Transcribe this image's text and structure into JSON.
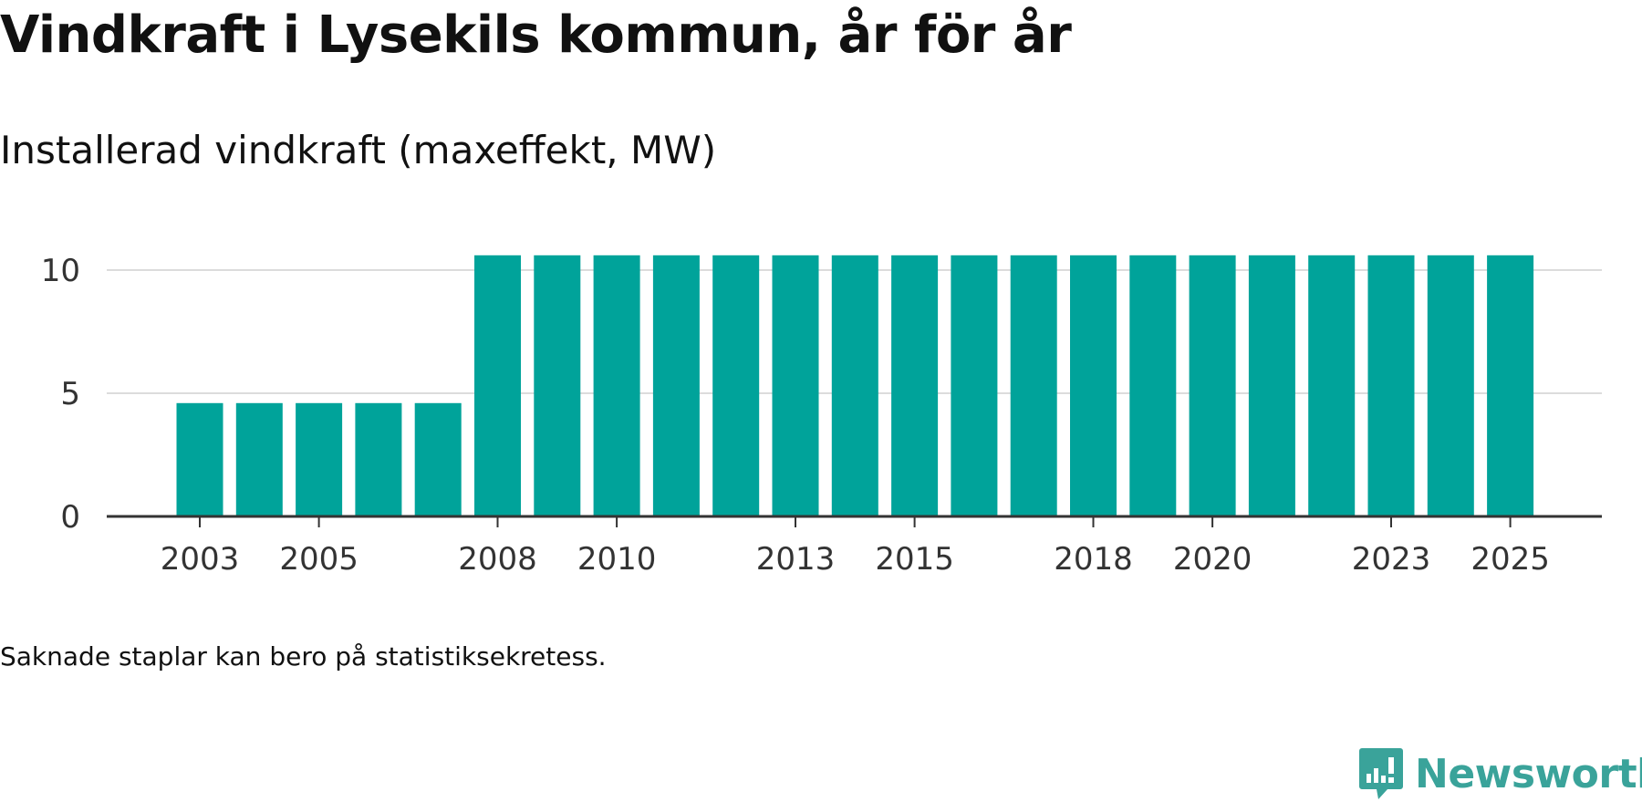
{
  "title": "Vindkraft i Lysekils kommun, år för år",
  "subtitle": "Installerad vindkraft (maxeffekt, MW)",
  "note": "Saknade staplar kan bero på statistiksekretess.",
  "brand": {
    "name": "Newsworthy",
    "icon": "newsworthy-logo-icon",
    "color": "#3aa39a"
  },
  "chart_data": {
    "type": "bar",
    "title": "Vindkraft i Lysekils kommun, år för år",
    "subtitle": "Installerad vindkraft (maxeffekt, MW)",
    "xlabel": "",
    "ylabel": "",
    "categories": [
      "2003",
      "2004",
      "2005",
      "2006",
      "2007",
      "2008",
      "2009",
      "2010",
      "2011",
      "2012",
      "2013",
      "2014",
      "2015",
      "2016",
      "2017",
      "2018",
      "2019",
      "2020",
      "2021",
      "2022",
      "2023",
      "2024",
      "2025"
    ],
    "values": [
      4.6,
      4.6,
      4.6,
      4.6,
      4.6,
      10.6,
      10.6,
      10.6,
      10.6,
      10.6,
      10.6,
      10.6,
      10.6,
      10.6,
      10.6,
      10.6,
      10.6,
      10.6,
      10.6,
      10.6,
      10.6,
      10.6,
      10.6
    ],
    "ylim": [
      0,
      11
    ],
    "yticks": [
      "0",
      "5",
      "10"
    ],
    "xtick_labels": [
      "2003",
      "2005",
      "2008",
      "2010",
      "2013",
      "2015",
      "2018",
      "2020",
      "2023",
      "2025"
    ],
    "grid": true,
    "bar_color": "#00a39a",
    "legend": "none"
  }
}
